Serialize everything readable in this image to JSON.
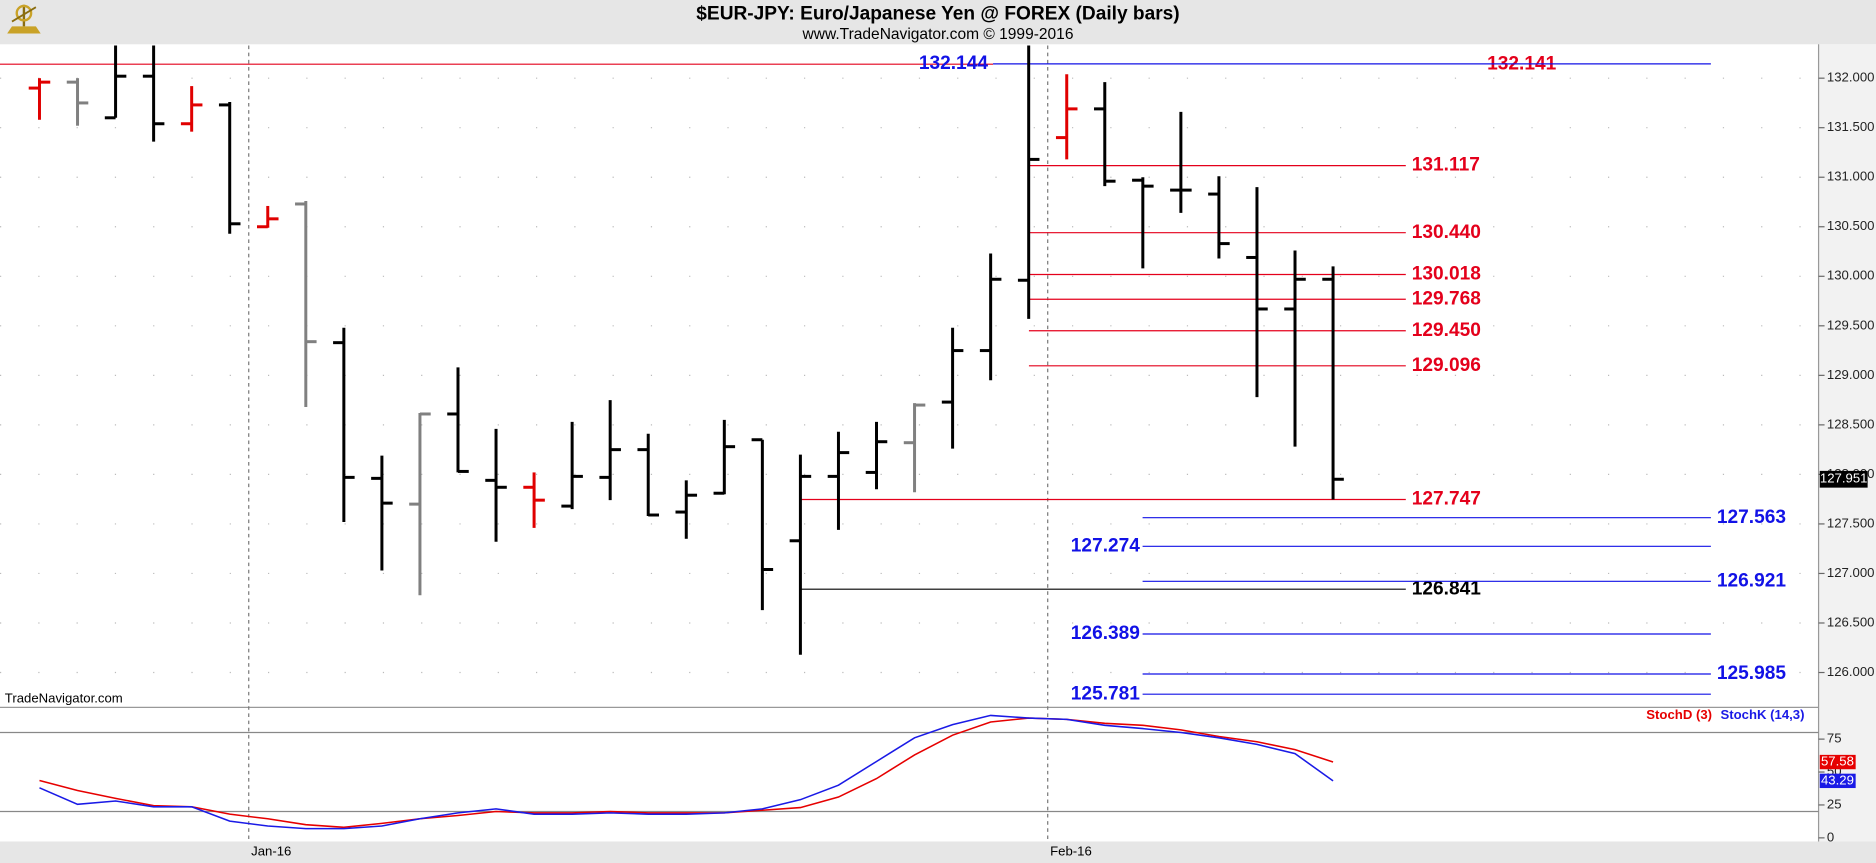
{
  "chart_data": [
    {
      "type": "ohlc",
      "title": "$EUR-JPY:  Euro/Japanese Yen @ FOREX  (Daily bars)",
      "subtitle": "www.TradeNavigator.com © 1999-2016",
      "watermark": "TradeNavigator.com",
      "categories": [
        null,
        null,
        null,
        null,
        null,
        null,
        "Jan-16",
        null,
        null,
        null,
        null,
        null,
        null,
        null,
        null,
        null,
        null,
        null,
        null,
        null,
        null,
        null,
        null,
        null,
        null,
        null,
        null,
        "Feb-16",
        null,
        null,
        null,
        null,
        null,
        null,
        null
      ],
      "open": [
        131.9,
        131.96,
        131.6,
        132.02,
        131.54,
        131.73,
        130.5,
        130.73,
        129.33,
        127.96,
        127.7,
        128.61,
        127.94,
        127.87,
        127.68,
        127.97,
        128.25,
        127.62,
        127.81,
        128.35,
        127.33,
        127.98,
        128.02,
        128.32,
        128.73,
        129.25,
        129.96,
        131.4,
        131.69,
        130.97,
        130.87,
        130.83,
        130.19,
        129.67,
        129.97
      ],
      "high": [
        132.0,
        132.0,
        132.33,
        132.33,
        131.92,
        131.76,
        130.71,
        130.76,
        129.48,
        128.19,
        128.62,
        129.08,
        128.46,
        128.02,
        128.53,
        128.75,
        128.41,
        127.94,
        128.55,
        128.35,
        128.2,
        128.43,
        128.53,
        128.72,
        129.48,
        130.23,
        132.33,
        132.04,
        131.96,
        131.0,
        131.66,
        131.01,
        130.9,
        130.26,
        130.1
      ],
      "low": [
        131.58,
        131.52,
        131.6,
        131.36,
        131.46,
        130.43,
        130.49,
        128.68,
        127.52,
        127.03,
        126.78,
        128.02,
        127.32,
        127.46,
        127.65,
        127.74,
        127.58,
        127.35,
        127.8,
        126.63,
        126.18,
        127.44,
        127.85,
        127.82,
        128.26,
        128.95,
        129.57,
        131.18,
        130.91,
        130.08,
        130.64,
        130.18,
        128.78,
        128.28,
        127.747
      ],
      "close": [
        131.96,
        131.75,
        132.02,
        131.54,
        131.73,
        130.53,
        130.58,
        129.34,
        127.97,
        127.71,
        128.61,
        128.03,
        127.87,
        127.74,
        127.98,
        128.25,
        127.59,
        127.79,
        128.28,
        127.04,
        127.98,
        128.22,
        128.33,
        128.7,
        129.25,
        129.97,
        131.18,
        131.69,
        130.96,
        130.91,
        130.87,
        130.33,
        129.67,
        129.97,
        127.951
      ],
      "colors": [
        "#e00000",
        "#808080",
        "#000000",
        "#000000",
        "#e00000",
        "#000000",
        "#e00000",
        "#808080",
        "#000000",
        "#000000",
        "#808080",
        "#000000",
        "#000000",
        "#e00000",
        "#000000",
        "#000000",
        "#000000",
        "#000000",
        "#000000",
        "#000000",
        "#000000",
        "#000000",
        "#000000",
        "#808080",
        "#000000",
        "#000000",
        "#000000",
        "#e00000",
        "#000000",
        "#000000",
        "#000000",
        "#000000",
        "#000000",
        "#000000",
        "#000000"
      ],
      "levels": [
        {
          "value": 132.141,
          "color": "#e4001b"
        },
        {
          "value": 131.117,
          "color": "#e4001b"
        },
        {
          "value": 130.44,
          "label": "130.440",
          "color": "#e4001b"
        },
        {
          "value": 130.018,
          "color": "#e4001b"
        },
        {
          "value": 129.768,
          "color": "#e4001b"
        },
        {
          "value": 129.45,
          "label": "129.450",
          "color": "#e4001b"
        },
        {
          "value": 129.096,
          "color": "#e4001b"
        },
        {
          "value": 127.747,
          "color": "#e4001b"
        },
        {
          "value": 126.841,
          "color": "#000000"
        },
        {
          "value": 132.144,
          "color": "#1212e6"
        },
        {
          "value": 127.563,
          "color": "#1212e6"
        },
        {
          "value": 127.274,
          "color": "#1212e6"
        },
        {
          "value": 126.921,
          "color": "#1212e6"
        },
        {
          "value": 126.389,
          "color": "#1212e6"
        },
        {
          "value": 125.985,
          "color": "#1212e6"
        },
        {
          "value": 125.781,
          "color": "#1212e6"
        }
      ],
      "ylim": [
        125.66,
        132.33
      ],
      "yticks": [
        {
          "value": 126,
          "label": "126.000"
        },
        {
          "value": 126.5,
          "label": "126.500"
        },
        {
          "value": 127,
          "label": "127.000"
        },
        {
          "value": 127.5,
          "label": "127.500"
        },
        {
          "value": 128,
          "label": "128.000"
        },
        {
          "value": 128.5,
          "label": "128.500"
        },
        {
          "value": 129,
          "label": "129.000"
        },
        {
          "value": 129.5,
          "label": "129.500"
        },
        {
          "value": 130,
          "label": "130.000"
        },
        {
          "value": 130.5,
          "label": "130.500"
        },
        {
          "value": 131,
          "label": "131.000"
        },
        {
          "value": 131.5,
          "label": "131.500"
        },
        {
          "value": 132,
          "label": "132.000"
        }
      ],
      "grid": true
    },
    {
      "type": "line",
      "series": [
        {
          "name": "StochD (3)",
          "color": "#e60000",
          "values": [
            43.6,
            36,
            30,
            24.5,
            23.6,
            18,
            14.5,
            10,
            8,
            11,
            14.5,
            17,
            20,
            19,
            19,
            20,
            19,
            19,
            19,
            21,
            23,
            31,
            45,
            63,
            78,
            88,
            91,
            90,
            87,
            85.5,
            82,
            77,
            73,
            67,
            57.58
          ]
        },
        {
          "name": "StochK (14,3)",
          "color": "#1a1ae6",
          "values": [
            38,
            25.5,
            28,
            23.6,
            23.6,
            12.7,
            9,
            7,
            7,
            9,
            14.5,
            19,
            22,
            18,
            18,
            19,
            18,
            18,
            19,
            22,
            29,
            40,
            58,
            76,
            86,
            93,
            91,
            90,
            85.5,
            83,
            80,
            76,
            71,
            64,
            43.29
          ]
        }
      ],
      "guide_lines": [
        20,
        80
      ],
      "ylim": [
        0,
        100
      ],
      "yticks": [
        0,
        25,
        50,
        75
      ]
    }
  ]
}
